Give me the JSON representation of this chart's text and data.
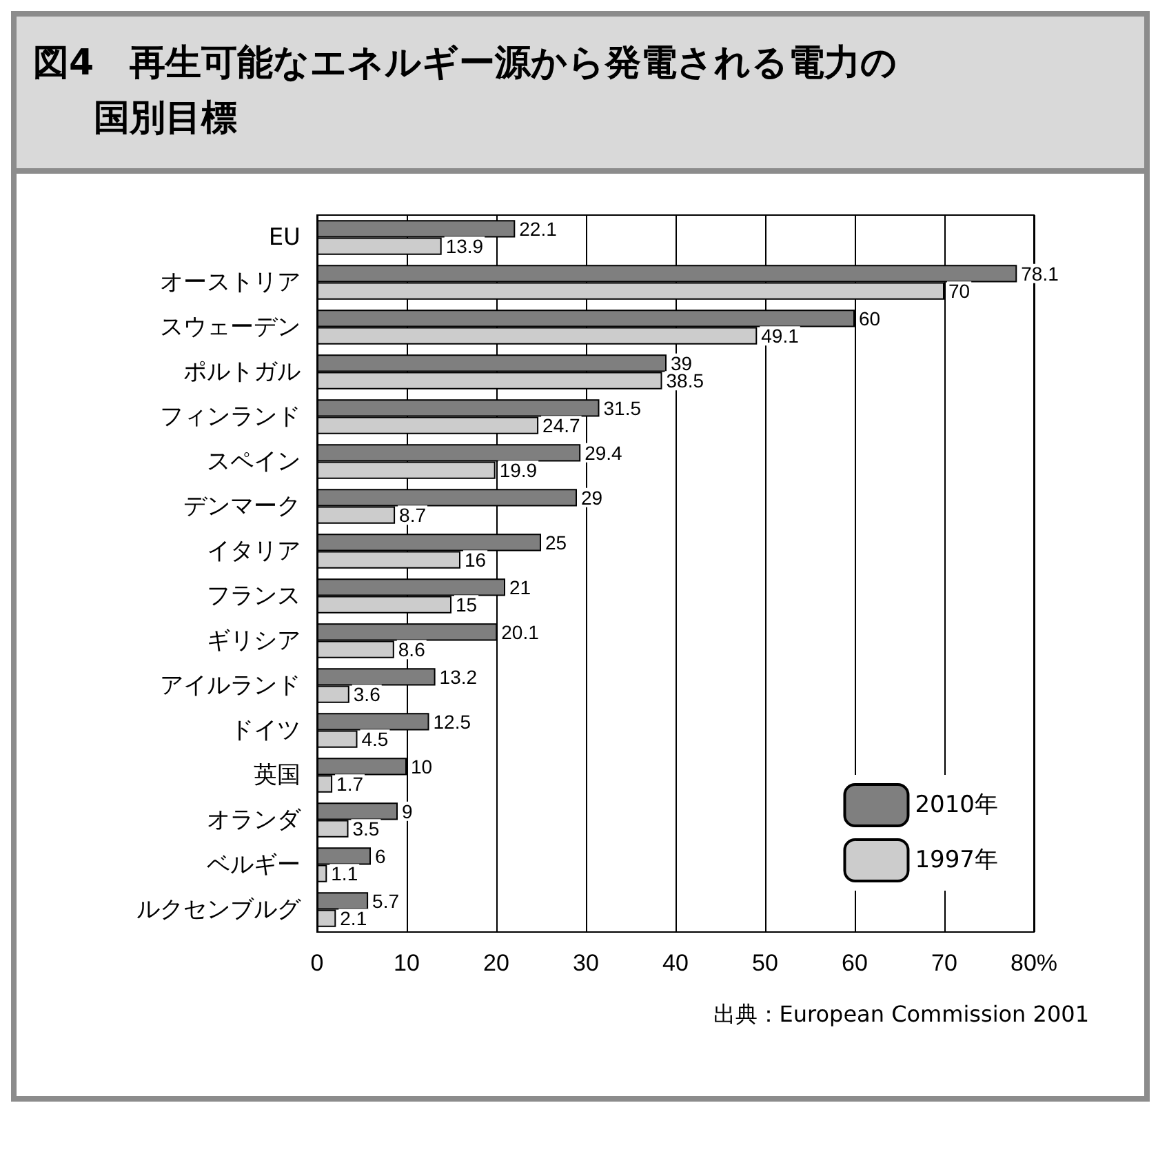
{
  "chart_data": {
    "type": "bar",
    "orientation": "horizontal",
    "title": "図4　再生可能なエネルギー源から発電される電力の国別目標",
    "categories": [
      "EU",
      "オーストリア",
      "スウェーデン",
      "ポルトガル",
      "フィンランド",
      "スペイン",
      "デンマーク",
      "イタリア",
      "フランス",
      "ギリシア",
      "アイルランド",
      "ドイツ",
      "英国",
      "オランダ",
      "ベルギー",
      "ルクセンブルグ"
    ],
    "series": [
      {
        "name": "2010年",
        "color": "#7f7f7f",
        "values": [
          22.1,
          78.1,
          60,
          39,
          31.5,
          29.4,
          29,
          25,
          21,
          20.1,
          13.2,
          12.5,
          10,
          9,
          6,
          5.7
        ]
      },
      {
        "name": "1997年",
        "color": "#cccccc",
        "values": [
          13.9,
          70,
          49.1,
          38.5,
          24.7,
          19.9,
          8.7,
          16,
          15,
          8.6,
          3.6,
          4.5,
          1.7,
          3.5,
          1.1,
          2.1
        ]
      }
    ],
    "xlim": [
      0,
      80
    ],
    "xticks": [
      0,
      10,
      20,
      30,
      40,
      50,
      60,
      70,
      {
        "value": 80,
        "label": "80%"
      }
    ],
    "grid": "x",
    "legend": "bottom right",
    "data_labels": true,
    "annotations": [
      "出典：European Commission 2001"
    ]
  }
}
